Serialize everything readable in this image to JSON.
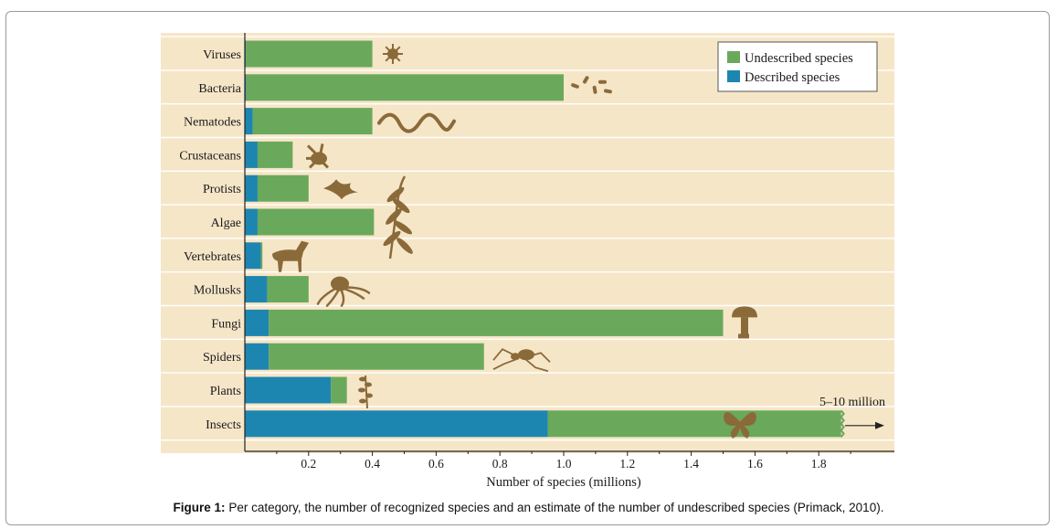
{
  "caption": {
    "label": "Figure 1:",
    "text": " Per category, the number of recognized species and an estimate of the number of undescribed species (Primack, 2010)."
  },
  "colors": {
    "described": "#1d86b0",
    "undescribed": "#6aa95c",
    "plot_background": "#f6e6c8",
    "gridline": "#ffffff",
    "silhouette": "#8b6a3a"
  },
  "chart_data": {
    "type": "bar",
    "orientation": "horizontal",
    "stacked": true,
    "categories": [
      "Viruses",
      "Bacteria",
      "Nematodes",
      "Crustaceans",
      "Protists",
      "Algae",
      "Vertebrates",
      "Mollusks",
      "Fungi",
      "Spiders",
      "Plants",
      "Insects"
    ],
    "series": [
      {
        "name": "Described species",
        "color": "#1d86b0",
        "values": [
          0.003,
          0.004,
          0.025,
          0.04,
          0.04,
          0.04,
          0.05,
          0.07,
          0.075,
          0.075,
          0.27,
          0.95
        ]
      },
      {
        "name": "Undescribed species",
        "color": "#6aa95c",
        "values": [
          0.397,
          0.996,
          0.375,
          0.11,
          0.16,
          0.365,
          0.005,
          0.13,
          1.425,
          0.675,
          0.05,
          0.92
        ]
      }
    ],
    "xlabel": "Number of species (millions)",
    "ylabel": "",
    "xlim": [
      0,
      2.03
    ],
    "xticks": [
      0.2,
      0.4,
      0.6,
      0.8,
      1.0,
      1.2,
      1.4,
      1.6,
      1.8
    ],
    "xtick_labels": [
      "0.2",
      "0.4",
      "0.6",
      "0.8",
      "1.0",
      "1.2",
      "1.4",
      "1.6",
      "1.8"
    ],
    "grid": "horizontal",
    "legend": {
      "placement": "top-right",
      "entries": [
        "Undescribed species",
        "Described species"
      ]
    },
    "annotations": [
      {
        "category": "Insects",
        "text": "5–10 million",
        "arrow": "right"
      }
    ],
    "icons": [
      "virus-icon",
      "bacteria-icon",
      "worm-icon",
      "crab-icon",
      "protist-icon",
      "seaweed-icon",
      "horse-icon",
      "octopus-icon",
      "mushroom-icon",
      "spider-icon",
      "plant-sprig-icon",
      "butterfly-icon"
    ]
  }
}
